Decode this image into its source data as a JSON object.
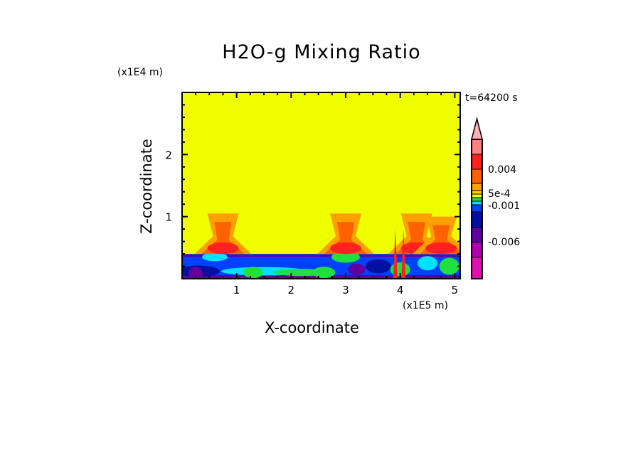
{
  "chart_data": {
    "type": "heatmap",
    "title": "H2O-g Mixing Ratio",
    "xlabel": "X-coordinate",
    "ylabel": "Z-coordinate",
    "x_unit": "(x1E5 m)",
    "y_unit": "(x1E4 m)",
    "time_label": "t=64200 s",
    "xlim": [
      0,
      5.1
    ],
    "ylim": [
      0,
      3.0
    ],
    "x_ticks": [
      "1",
      "2",
      "3",
      "4",
      "5"
    ],
    "x_tick_values": [
      1,
      2,
      3,
      4,
      5
    ],
    "y_ticks": [
      "1",
      "2"
    ],
    "y_tick_values": [
      1,
      2
    ],
    "colorbar": {
      "labels": [
        "0.004",
        "5e-4",
        "-0.001",
        "-0.006"
      ],
      "colors": [
        "#ff8080",
        "#ff2020",
        "#ff6000",
        "#ffa000",
        "#ffd000",
        "#f0ff00",
        "#20e040",
        "#00e0ff",
        "#0040ff",
        "#0010a0",
        "#6000a0",
        "#b000b0",
        "#e010b0"
      ],
      "extend_color": "#ffb0b0"
    },
    "background_color": "#f0ff00",
    "lower_layer_top": 0.4,
    "plumes": [
      {
        "x_center": 0.75,
        "top": 1.05
      },
      {
        "x_center": 3.0,
        "top": 1.05
      },
      {
        "x_center": 4.3,
        "top": 1.05
      },
      {
        "x_center": 4.75,
        "top": 1.0
      }
    ]
  }
}
